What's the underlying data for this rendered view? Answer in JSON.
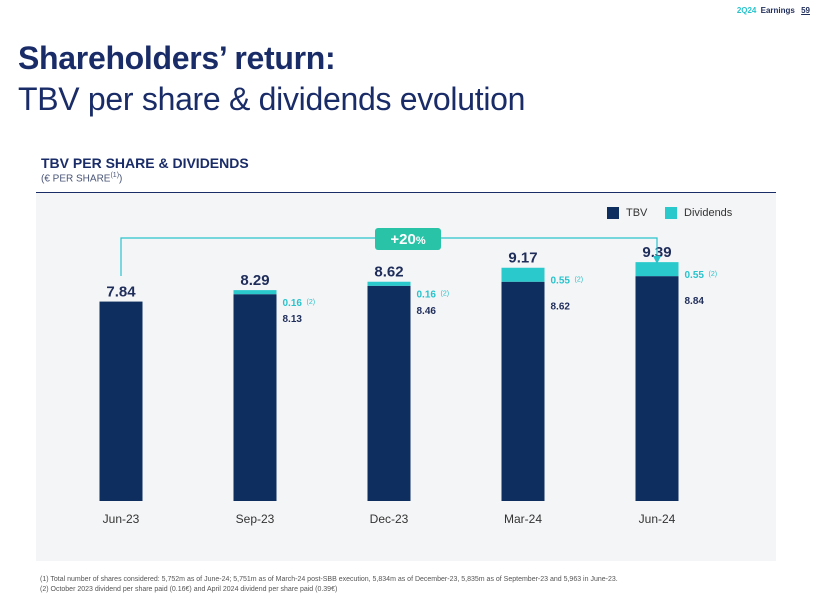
{
  "header": {
    "code": "2Q24",
    "label": "Earnings",
    "page": "59"
  },
  "title": {
    "line1": "Shareholders’ return:",
    "line2": "TBV per share & dividends evolution"
  },
  "section": {
    "title": "TBV PER SHARE & DIVIDENDS",
    "subtitle": "(€ PER SHARE",
    "subtitle_sup": "(1)",
    "subtitle_end": ")"
  },
  "colors": {
    "tbv": "#0d2e5f",
    "dividends": "#29c9cc",
    "accent": "#29c3cc"
  },
  "legend": {
    "tbv": "TBV",
    "dividends": "Dividends"
  },
  "growth": {
    "label": "+20",
    "pct": "%"
  },
  "chart_data": {
    "type": "bar",
    "stacked": true,
    "categories": [
      "Jun-23",
      "Sep-23",
      "Dec-23",
      "Mar-24",
      "Jun-24"
    ],
    "series": [
      {
        "name": "TBV",
        "values": [
          7.84,
          8.13,
          8.46,
          8.62,
          8.84
        ]
      },
      {
        "name": "Dividends",
        "values": [
          0,
          0.16,
          0.16,
          0.55,
          0.55
        ]
      }
    ],
    "totals": [
      "7.84",
      "8.29",
      "8.62",
      "9.17",
      "9.39"
    ],
    "tbv_labels": [
      "",
      "8.13",
      "8.46",
      "8.62",
      "8.84"
    ],
    "div_labels": [
      "",
      "0.16",
      "0.16",
      "0.55",
      "0.55"
    ],
    "div_note": "(2)",
    "ylim": [
      0,
      10.3
    ]
  },
  "footnotes": [
    "(1) Total number of shares considered: 5,752m as of June-24; 5,751m as of March-24 post-SBB execution, 5,834m as of December-23, 5,835m as of September-23 and 5,963 in June-23.",
    "(2) October 2023 dividend per share paid (0.16€) and April 2024 dividend per share paid (0.39€)"
  ]
}
